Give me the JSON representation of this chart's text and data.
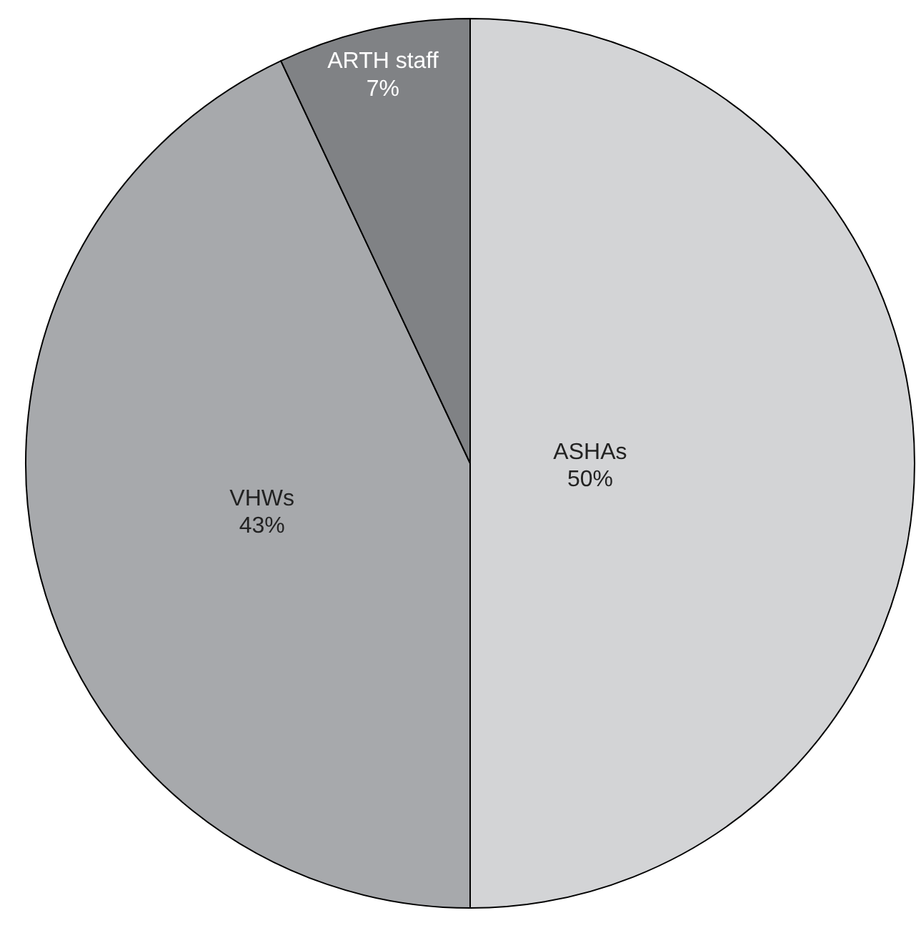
{
  "chart_data": {
    "type": "pie",
    "categories": [
      "ASHAs",
      "VHWs",
      "ARTH staff"
    ],
    "values": [
      50,
      43,
      7
    ],
    "value_labels": [
      "50%",
      "43%",
      "7%"
    ],
    "colors": [
      "#d3d4d6",
      "#a7a9ac",
      "#808285"
    ]
  }
}
